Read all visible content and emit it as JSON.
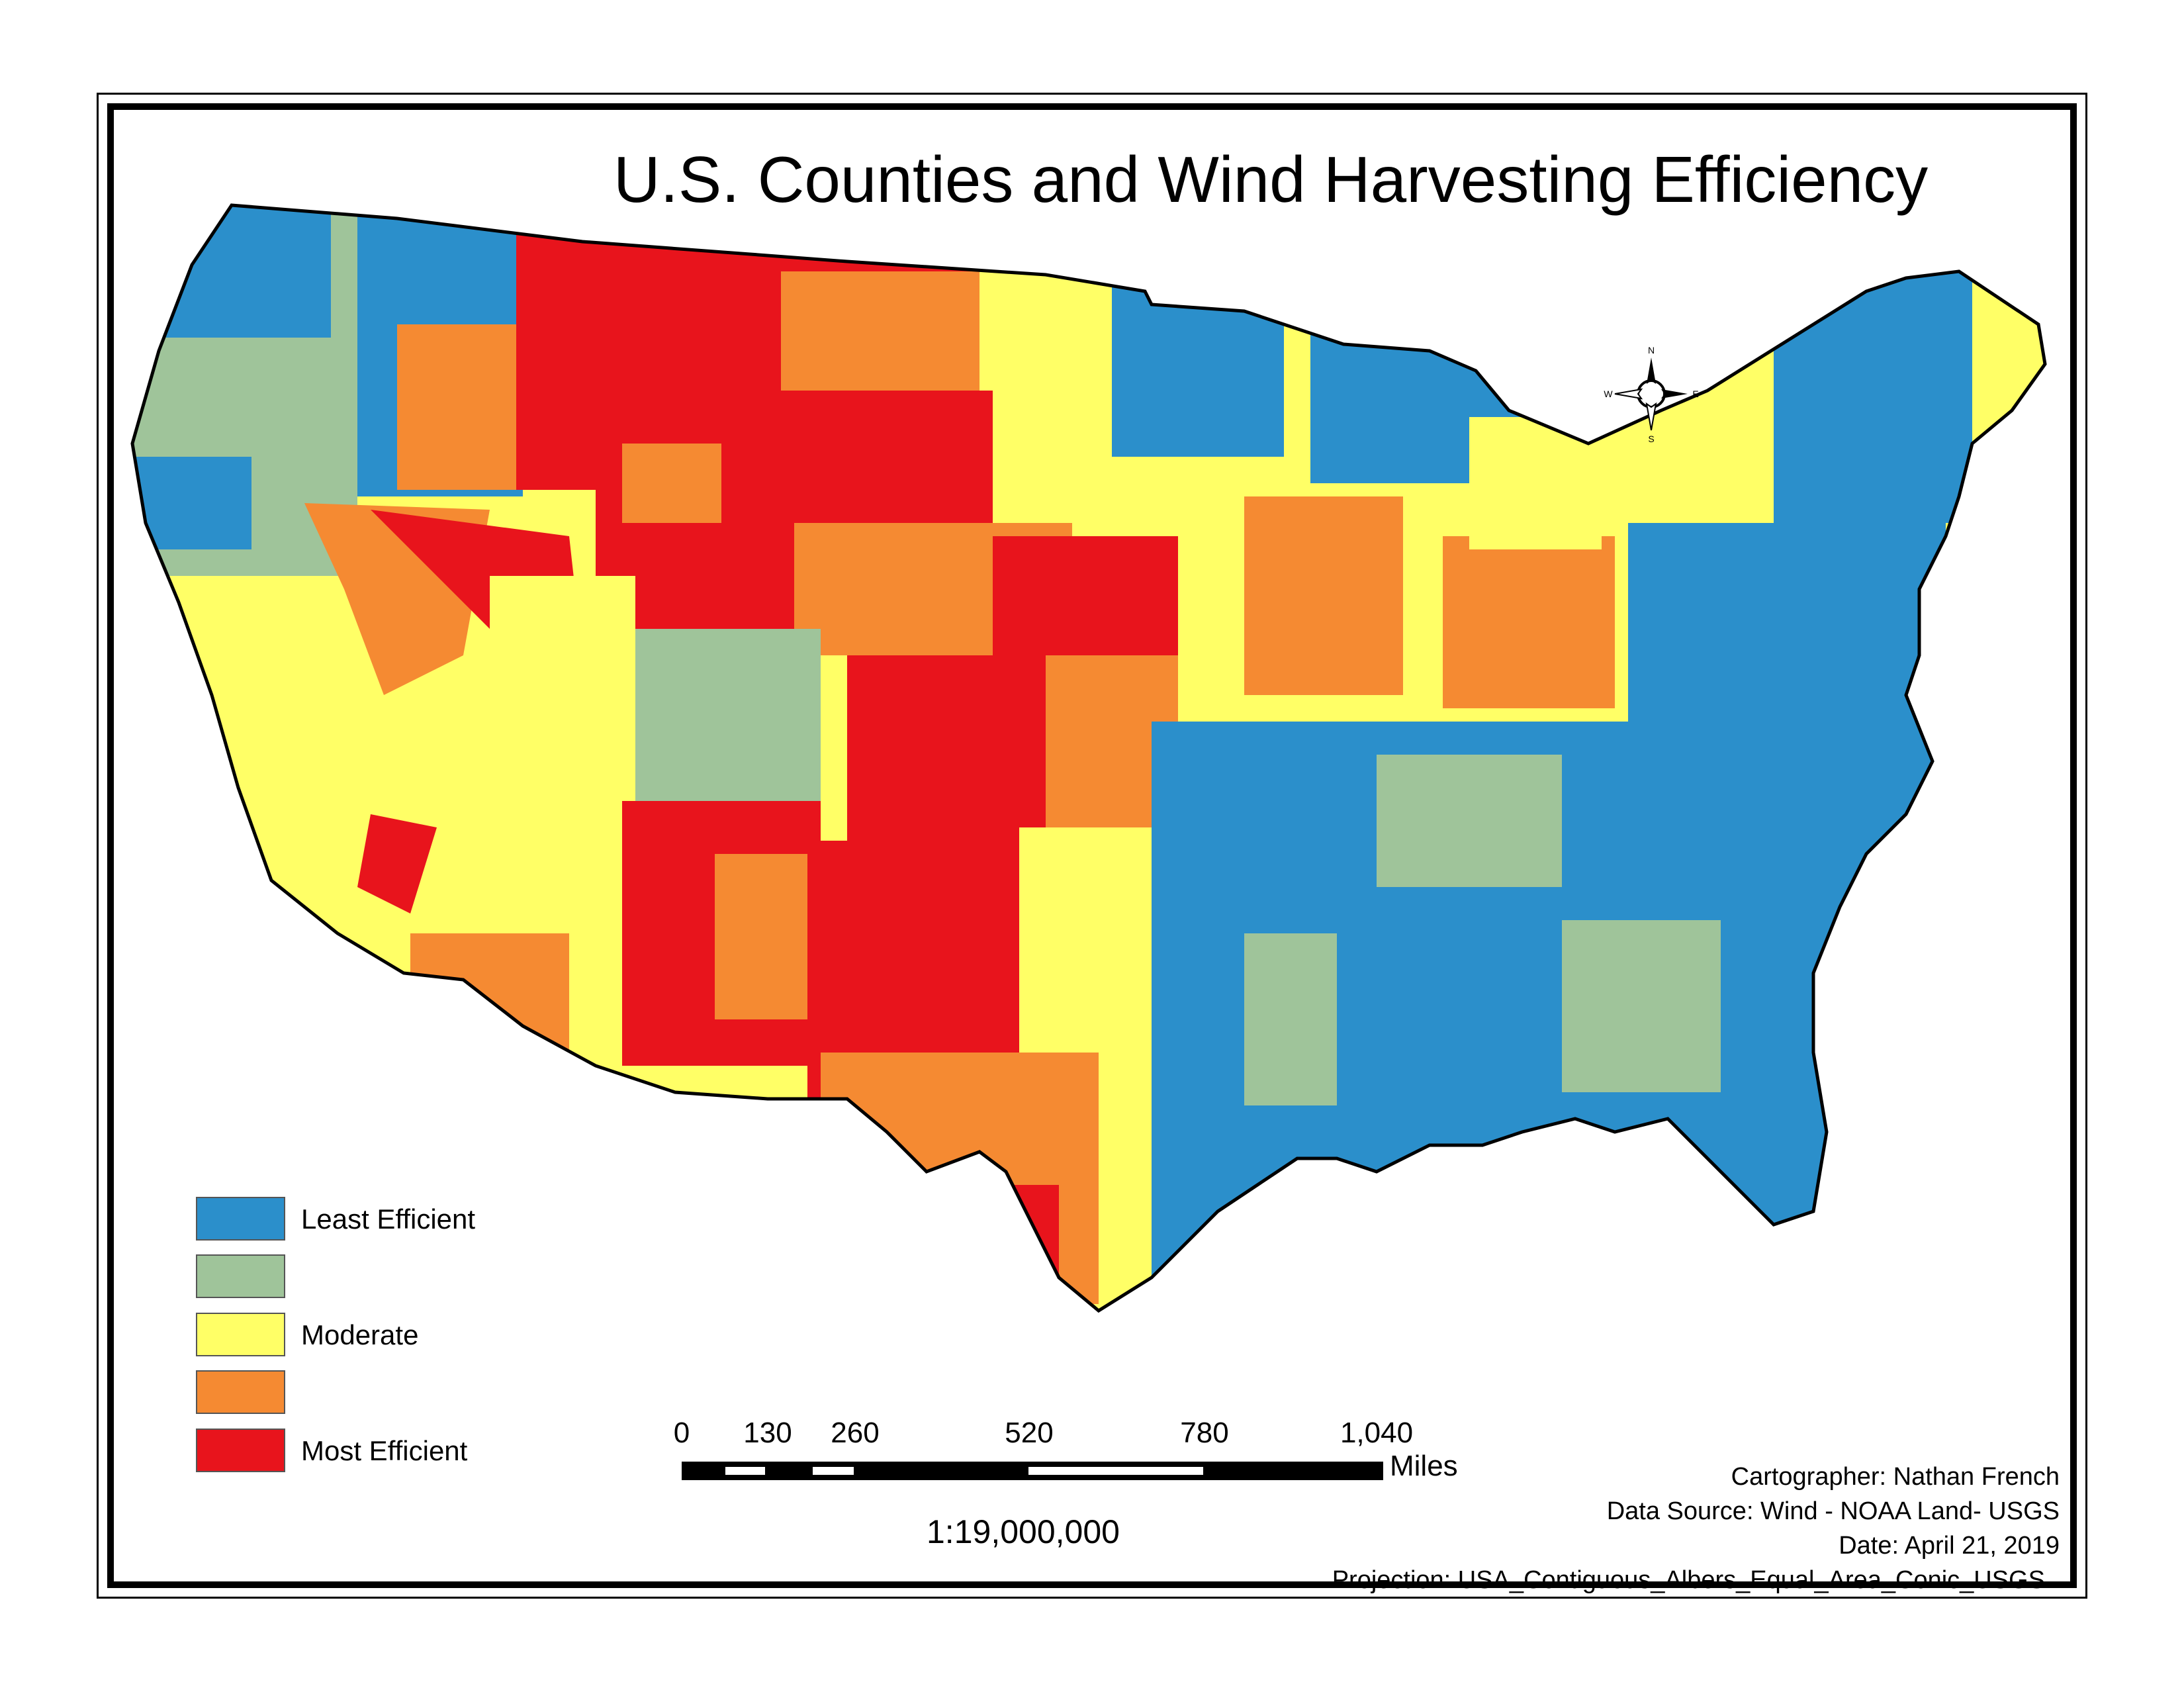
{
  "title": "U.S. Counties and Wind Harvesting Efficiency",
  "legend": {
    "items": [
      {
        "label": "Least Efficient",
        "color": "#2b8fcb"
      },
      {
        "label": "",
        "color": "#9fc49a"
      },
      {
        "label": "Moderate",
        "color": "#ffff66"
      },
      {
        "label": "",
        "color": "#f58a32"
      },
      {
        "label": "Most Efficient",
        "color": "#e8141c"
      }
    ]
  },
  "scale_bar": {
    "ticks": [
      "0",
      "130",
      "260",
      "520",
      "780",
      "1,040"
    ],
    "units": "Miles",
    "ratio": "1:19,000,000"
  },
  "compass": {
    "n": "N",
    "s": "S",
    "e": "E",
    "w": "W"
  },
  "credits": {
    "cartographer": "Cartographer: Nathan French",
    "data_source": "Data Source: Wind - NOAA  Land- USGS",
    "date": "Date: April 21, 2019",
    "projection": "Projection: USA_Contiguous_Albers_Equal_Area_Conic_USGS"
  },
  "colors": {
    "least": "#2b8fcb",
    "low": "#9fc49a",
    "moderate": "#ffff66",
    "high": "#f58a32",
    "most": "#e8141c"
  }
}
